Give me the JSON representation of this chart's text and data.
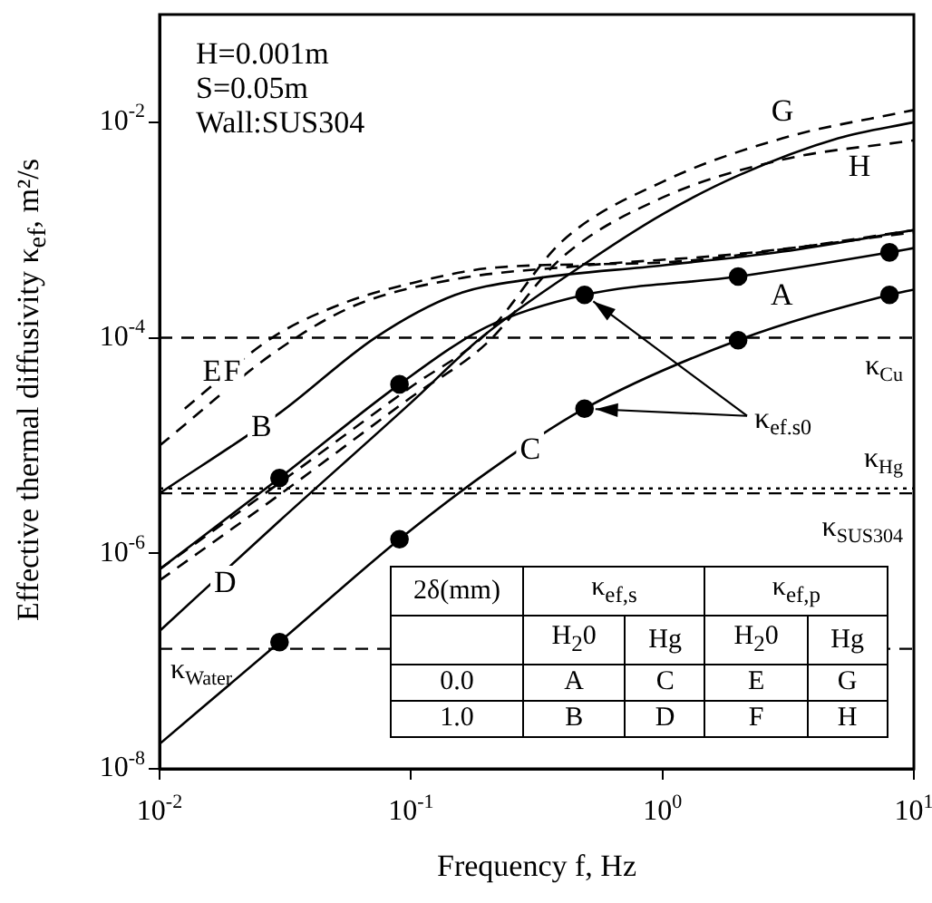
{
  "chart_data": {
    "type": "line",
    "xlabel": "Frequency  f, Hz",
    "ylabel": "Effective thermal diffusivity  κ$_{ef}$, m²/s",
    "log": "xy",
    "grid": false,
    "legend": false,
    "marker": "none",
    "xlim": [
      0.01,
      10
    ],
    "xticks": [
      {
        "value": 0.01,
        "label": "10$^{-2}$"
      },
      {
        "value": 0.1,
        "label": "10$^{-1}$"
      },
      {
        "value": 1,
        "label": "10$^{0}$"
      },
      {
        "value": 10,
        "label": "10$^{1}$"
      }
    ],
    "ylim": [
      1e-08,
      0.1
    ],
    "yticks": [
      {
        "value": 1e-08,
        "label": "10$^{-8}$"
      },
      {
        "value": 1e-06,
        "label": "10$^{-6}$"
      },
      {
        "value": 0.0001,
        "label": "10$^{-4}$"
      },
      {
        "value": 0.01,
        "label": "10$^{-2}$"
      }
    ],
    "series": [
      {
        "name": "A",
        "color": "#000000",
        "line_style": "solid",
        "x": [
          0.01,
          0.03,
          0.09,
          0.2,
          0.49,
          2,
          8,
          10
        ],
        "values": [
          7.1e-07,
          5e-06,
          3.7e-05,
          0.000126,
          0.00025,
          0.00037,
          0.00062,
          0.00068
        ]
      },
      {
        "name": "B",
        "color": "#000000",
        "line_style": "solid",
        "x": [
          0.01,
          0.03,
          0.072,
          0.15,
          0.3,
          1,
          3,
          10
        ],
        "values": [
          3.6e-06,
          2e-05,
          0.0001,
          0.00025,
          0.00035,
          0.00047,
          0.00063,
          0.001
        ]
      },
      {
        "name": "C",
        "color": "#000000",
        "line_style": "solid",
        "x": [
          0.01,
          0.03,
          0.09,
          0.2,
          0.49,
          2,
          8,
          10
        ],
        "values": [
          1.7e-08,
          1.5e-07,
          1.35e-06,
          5.6e-06,
          2.2e-05,
          9.5e-05,
          0.00025,
          0.00028
        ]
      },
      {
        "name": "D",
        "color": "#000000",
        "line_style": "solid",
        "x": [
          0.01,
          0.03,
          0.1,
          0.19,
          0.5,
          1,
          2,
          5,
          10
        ],
        "values": [
          1.9e-07,
          2e-06,
          2.5e-05,
          0.0001,
          0.0005,
          0.0014,
          0.0032,
          0.0071,
          0.01
        ]
      },
      {
        "name": "E",
        "color": "#000000",
        "line_style": "dashed",
        "x": [
          0.0126,
          0.028,
          0.054,
          0.1,
          0.22,
          1,
          3,
          10
        ],
        "values": [
          2.2e-05,
          0.0001,
          0.00021,
          0.00032,
          0.00045,
          0.0005,
          0.00066,
          0.001
        ]
      },
      {
        "name": "F",
        "color": "#000000",
        "line_style": "dashed",
        "x": [
          0.01,
          0.03,
          0.06,
          0.15,
          0.5,
          2,
          10
        ],
        "values": [
          1e-05,
          7.9e-05,
          0.0002,
          0.00035,
          0.00047,
          0.0006,
          0.00095
        ]
      },
      {
        "name": "G",
        "color": "#000000",
        "line_style": "dashed",
        "x": [
          0.01,
          0.03,
          0.1,
          0.2,
          0.4,
          1,
          3,
          10
        ],
        "values": [
          7.1e-07,
          4.5e-06,
          3.5e-05,
          0.00011,
          0.00079,
          0.0028,
          0.0071,
          0.013
        ]
      },
      {
        "name": "H",
        "color": "#000000",
        "line_style": "dashed",
        "x": [
          0.01,
          0.03,
          0.1,
          0.2,
          0.4,
          1,
          3,
          10
        ],
        "values": [
          5.6e-07,
          3.5e-06,
          2.8e-05,
          8.9e-05,
          0.00056,
          0.002,
          0.0045,
          0.0068
        ]
      },
      {
        "type": "scatter",
        "color": "#000000",
        "marker": "circle",
        "x": [
          0.03,
          0.09,
          0.49,
          2,
          8
        ],
        "values": [
          5e-06,
          3.7e-05,
          0.00025,
          0.00037,
          0.00062
        ]
      },
      {
        "type": "scatter",
        "color": "#000000",
        "marker": "circle",
        "x": [
          0.03,
          0.09,
          0.49,
          2,
          8
        ],
        "values": [
          1.5e-07,
          1.35e-06,
          2.2e-05,
          9.5e-05,
          0.00025
        ]
      }
    ],
    "ref_lines": [
      {
        "axis": "y",
        "value": 0.0001,
        "label": "κ$_{Cu}$",
        "line_style": "dashed",
        "color": "#000000"
      },
      {
        "axis": "y",
        "value": 4e-06,
        "label": "κ$_{Hg}$",
        "line_style": "dotted",
        "color": "#000000"
      },
      {
        "axis": "y",
        "value": 3.6e-06,
        "label": "κ$_{SUS304}$",
        "line_style": "dashed",
        "color": "#000000"
      },
      {
        "axis": "y",
        "value": 1.3e-07,
        "label": "κ$_{Water}$",
        "line_style": "dashed",
        "color": "#000000"
      }
    ],
    "annotations": [
      "H=0.001m",
      "S=0.05m",
      "Wall:SUS304",
      {
        "text": "κ$_{ef.s0}$",
        "x": 0.49,
        "y": 0.00025
      },
      "2δ(mm)",
      "κ$_{ef,s}$",
      "κ$_{ef,p}$",
      "H$_{2}$0",
      "Hg",
      "H$_{2}$0",
      "Hg",
      "0.0",
      "A",
      "C",
      "E",
      "G",
      "1.0",
      "B",
      "D",
      "F",
      "H"
    ]
  }
}
